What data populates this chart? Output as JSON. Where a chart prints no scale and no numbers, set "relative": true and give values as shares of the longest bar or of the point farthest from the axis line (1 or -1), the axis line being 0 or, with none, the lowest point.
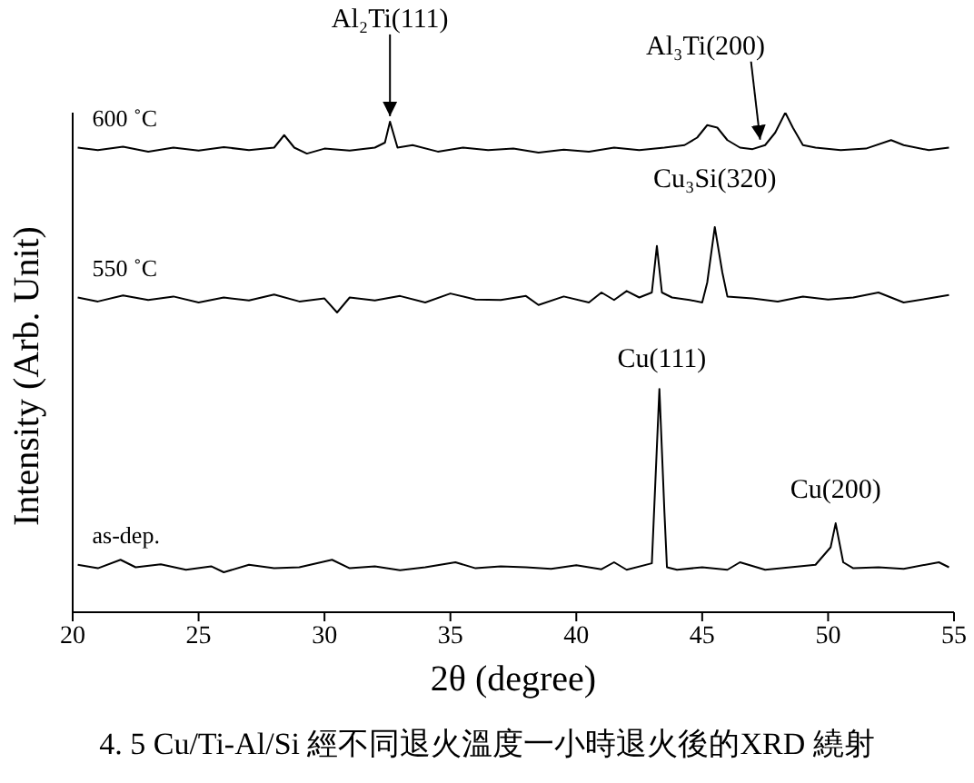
{
  "chart_data": {
    "type": "line",
    "relative": true,
    "xlabel": "2θ (degree)",
    "ylabel": "Intensity (Arb. Unit)",
    "xlim": [
      20,
      55
    ],
    "xticks": [
      20,
      25,
      30,
      35,
      40,
      45,
      50,
      55
    ],
    "marker": "none",
    "series": [
      {
        "name": "600 ˚C",
        "color": "#000000",
        "x": [
          20.2,
          21,
          22,
          23,
          24,
          25,
          26,
          27,
          28,
          28.4,
          28.8,
          29.3,
          30,
          31,
          32,
          32.4,
          32.6,
          32.9,
          33.5,
          34.5,
          35.5,
          36.5,
          37.5,
          38.5,
          39.5,
          40.5,
          41.5,
          42.5,
          43.5,
          44.3,
          44.8,
          45.2,
          45.6,
          46,
          46.5,
          47,
          47.5,
          47.9,
          48.3,
          48.6,
          49,
          49.5,
          50.5,
          51.5,
          52.5,
          53,
          54,
          54.8
        ],
        "values": [
          0.93,
          0.925,
          0.932,
          0.922,
          0.93,
          0.924,
          0.931,
          0.925,
          0.93,
          0.955,
          0.93,
          0.918,
          0.928,
          0.924,
          0.93,
          0.94,
          0.982,
          0.93,
          0.935,
          0.922,
          0.93,
          0.925,
          0.928,
          0.92,
          0.926,
          0.922,
          0.93,
          0.925,
          0.93,
          0.935,
          0.95,
          0.975,
          0.97,
          0.945,
          0.93,
          0.927,
          0.935,
          0.96,
          1.0,
          0.97,
          0.935,
          0.93,
          0.925,
          0.928,
          0.945,
          0.935,
          0.925,
          0.93
        ]
      },
      {
        "name": "550 ˚C",
        "color": "#000000",
        "x": [
          20.2,
          21,
          22,
          23,
          24,
          25,
          26,
          27,
          28,
          29,
          30,
          30.5,
          31,
          32,
          33,
          34,
          35,
          36,
          37,
          38,
          38.5,
          39.5,
          40.5,
          41,
          41.5,
          42,
          42.5,
          43,
          43.2,
          43.4,
          43.8,
          44.5,
          45,
          45.2,
          45.5,
          45.8,
          46,
          47,
          48,
          49,
          50,
          51,
          52,
          53,
          54,
          54.8
        ],
        "values": [
          0.63,
          0.622,
          0.634,
          0.625,
          0.632,
          0.62,
          0.63,
          0.624,
          0.636,
          0.622,
          0.628,
          0.6,
          0.63,
          0.624,
          0.633,
          0.62,
          0.638,
          0.626,
          0.625,
          0.633,
          0.615,
          0.632,
          0.62,
          0.64,
          0.625,
          0.643,
          0.63,
          0.64,
          0.733,
          0.64,
          0.63,
          0.625,
          0.62,
          0.66,
          0.771,
          0.68,
          0.632,
          0.628,
          0.622,
          0.632,
          0.626,
          0.63,
          0.64,
          0.62,
          0.628,
          0.635
        ]
      },
      {
        "name": "as-dep.",
        "color": "#000000",
        "x": [
          20.2,
          21,
          21.9,
          22.5,
          23.5,
          24.5,
          25.5,
          26,
          27,
          28,
          29,
          30.3,
          31,
          32,
          33,
          34,
          35.2,
          36,
          37,
          38,
          39,
          40,
          41,
          41.5,
          42,
          43,
          43.3,
          43.5,
          43.6,
          44,
          45,
          46,
          46.5,
          47.5,
          48.5,
          49.5,
          50.1,
          50.3,
          50.6,
          51,
          52,
          53,
          54.4,
          54.8
        ],
        "values": [
          0.095,
          0.088,
          0.105,
          0.09,
          0.096,
          0.085,
          0.092,
          0.08,
          0.095,
          0.088,
          0.09,
          0.105,
          0.088,
          0.092,
          0.084,
          0.09,
          0.1,
          0.088,
          0.092,
          0.09,
          0.087,
          0.094,
          0.086,
          0.1,
          0.085,
          0.098,
          0.447,
          0.2,
          0.09,
          0.085,
          0.09,
          0.085,
          0.1,
          0.085,
          0.09,
          0.095,
          0.13,
          0.178,
          0.1,
          0.088,
          0.09,
          0.087,
          0.1,
          0.09
        ]
      }
    ],
    "annotations": [
      {
        "text": "Al₂Ti(111)",
        "x": 32.6,
        "y": 0.982
      },
      {
        "text": "Al₃Ti(200)",
        "x": 47.3,
        "y": 0.935
      },
      {
        "text": "Cu₃Si(320)",
        "x": 45.5,
        "y": 0.771
      },
      {
        "text": "Cu(111)",
        "x": 43.4,
        "y": 0.447
      },
      {
        "text": "Cu(200)",
        "x": 50.3,
        "y": 0.178
      },
      "4. 5 Cu/Ti-Al/Si 經不同退火溫度一小時退火後的XRD 繞射"
    ]
  }
}
